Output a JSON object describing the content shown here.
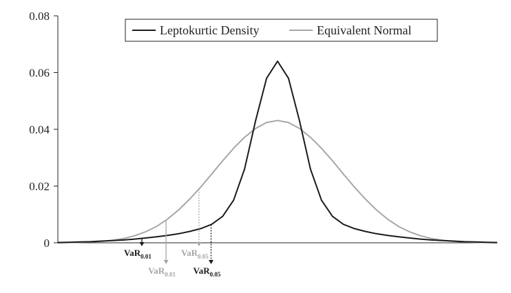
{
  "chart_data": {
    "type": "line",
    "title": "",
    "xlabel": "",
    "ylabel": "",
    "ylim": [
      0,
      0.08
    ],
    "yticks": [
      {
        "value": 0,
        "label": "0"
      },
      {
        "value": 0.02,
        "label": "0.02"
      },
      {
        "value": 0.04,
        "label": "0.04"
      },
      {
        "value": 0.06,
        "label": "0.06"
      },
      {
        "value": 0.08,
        "label": "0.08"
      }
    ],
    "x": [
      -40,
      -38,
      -36,
      -34,
      -32,
      -30,
      -28,
      -26,
      -24,
      -22,
      -20,
      -18,
      -16,
      -14,
      -12,
      -10,
      -8,
      -6,
      -4,
      -2,
      0,
      2,
      4,
      6,
      8,
      10,
      12,
      14,
      16,
      18,
      20,
      22,
      24,
      26,
      28,
      30,
      32,
      34,
      36,
      38,
      40
    ],
    "xlim": [
      -40,
      40
    ],
    "grid": false,
    "legend_position": "top-center",
    "series": [
      {
        "name": "Leptokurtic Density",
        "color": "#1a1a1a",
        "values": [
          0.0001,
          0.0002,
          0.0003,
          0.0004,
          0.0006,
          0.0008,
          0.001,
          0.0013,
          0.0017,
          0.0021,
          0.0026,
          0.0032,
          0.004,
          0.005,
          0.0065,
          0.0093,
          0.015,
          0.026,
          0.043,
          0.058,
          0.064,
          0.058,
          0.043,
          0.026,
          0.015,
          0.0093,
          0.0065,
          0.005,
          0.004,
          0.0032,
          0.0026,
          0.0021,
          0.0017,
          0.0013,
          0.001,
          0.0008,
          0.0006,
          0.0004,
          0.0003,
          0.0002,
          0.0001
        ]
      },
      {
        "name": "Equivalent Normal",
        "color": "#a6a6a6",
        "values": [
          0.0,
          0.0001,
          0.0002,
          0.0003,
          0.0005,
          0.0009,
          0.0015,
          0.0025,
          0.0039,
          0.0058,
          0.0084,
          0.0116,
          0.0154,
          0.0196,
          0.0242,
          0.0289,
          0.0333,
          0.0372,
          0.0403,
          0.0424,
          0.0431,
          0.0424,
          0.0403,
          0.0372,
          0.0333,
          0.0289,
          0.0242,
          0.0196,
          0.0154,
          0.0116,
          0.0084,
          0.0058,
          0.0039,
          0.0025,
          0.0015,
          0.0009,
          0.0005,
          0.0003,
          0.0002,
          0.0001,
          0.0
        ]
      }
    ],
    "annotations": [
      {
        "name": "var-lepto-001",
        "base": "VaR",
        "sub": "0.01",
        "x": -24.7,
        "color": "#1a1a1a",
        "style": "solid",
        "row": 1
      },
      {
        "name": "var-normal-001",
        "base": "VaR",
        "sub": "0.01",
        "x": -20.3,
        "color": "#a6a6a6",
        "style": "solid",
        "row": 2
      },
      {
        "name": "var-normal-005",
        "base": "VaR",
        "sub": "0.05",
        "x": -14.3,
        "color": "#a6a6a6",
        "style": "dotted",
        "row": 1
      },
      {
        "name": "var-lepto-005",
        "base": "VaR",
        "sub": "0.05",
        "x": -12.1,
        "color": "#1a1a1a",
        "style": "dotted",
        "row": 2
      }
    ]
  }
}
